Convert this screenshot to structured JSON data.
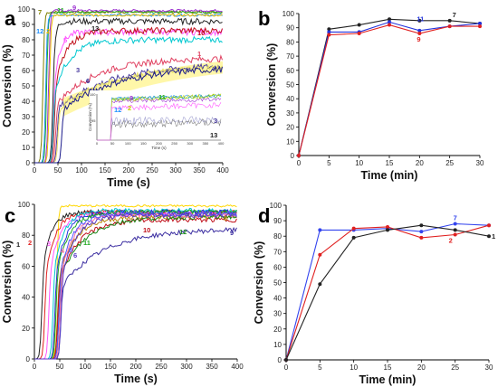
{
  "chart_data": [
    {
      "panel": "a",
      "type": "line",
      "xlabel": "Time (s)",
      "ylabel": "Conversion (%)",
      "xlim": [
        0,
        400
      ],
      "ylim": [
        0,
        100
      ],
      "xticks": [
        "0",
        "50",
        "100",
        "150",
        "200",
        "250",
        "300",
        "350",
        "400"
      ],
      "yticks": [
        "0",
        "10",
        "20",
        "30",
        "40",
        "50",
        "60",
        "70",
        "80",
        "90",
        "100"
      ],
      "grid": false,
      "series": [
        {
          "name": "7",
          "color": "#808000",
          "plateau": 98,
          "rise": 18,
          "k": 0.5
        },
        {
          "name": "11",
          "color": "#22a822",
          "plateau": 98,
          "rise": 26,
          "k": 0.45
        },
        {
          "name": "9",
          "color": "#9b30d0",
          "plateau": 99,
          "rise": 30,
          "k": 0.4
        },
        {
          "name": "12",
          "color": "#1e90ff",
          "plateau": 96,
          "rise": 24,
          "k": 0.45
        },
        {
          "name": "2",
          "color": "#f0c000",
          "plateau": 96,
          "rise": 32,
          "k": 0.4
        },
        {
          "name": "13",
          "color": "#222222",
          "plateau": 92,
          "rise": 38,
          "k": 0.2
        },
        {
          "name": "5",
          "color": "#ff55ff",
          "plateau": 85,
          "rise": 40,
          "k": 0.08
        },
        {
          "name": "10",
          "color": "#c0101a",
          "plateau": 86,
          "rise": 42,
          "k": 0.04
        },
        {
          "name": "",
          "color": "#00c8d0",
          "plateau": 80,
          "rise": 40,
          "k": 0.03
        },
        {
          "name": "1",
          "color": "#e04060",
          "plateau": 68,
          "rise": 45,
          "k": 0.012
        },
        {
          "name": "3",
          "color": "#4a3ca0",
          "plateau": 64,
          "rise": 48,
          "k": 0.009
        },
        {
          "name": "",
          "color": "#e6e060",
          "plateau": 63,
          "rise": 50,
          "k": 0.009
        },
        {
          "name": "6",
          "color": "#1c1c8c",
          "plateau": 62,
          "rise": 58,
          "k": 0.009
        }
      ],
      "inset": {
        "xlabel": "Time (s)",
        "ylabel": "Conversion (%)",
        "xticks": [
          "0",
          "50",
          "100",
          "150",
          "200",
          "250",
          "300",
          "350",
          "400"
        ],
        "yticks": [
          "95",
          "100"
        ],
        "series_labels": [
          "9",
          "11",
          "12",
          "2",
          "3",
          "13"
        ]
      }
    },
    {
      "panel": "b",
      "type": "line",
      "xlabel": "Time (min)",
      "ylabel": "Conversion (%)",
      "xlim": [
        0,
        30
      ],
      "ylim": [
        0,
        100
      ],
      "xticks": [
        "0",
        "5",
        "10",
        "15",
        "20",
        "25",
        "30"
      ],
      "yticks": [
        "0",
        "10",
        "20",
        "30",
        "40",
        "50",
        "60",
        "70",
        "80",
        "90",
        "100"
      ],
      "x": [
        0,
        5,
        10,
        15,
        20,
        25,
        30
      ],
      "series": [
        {
          "name": "7",
          "color": "#222222",
          "values": [
            0,
            89,
            92,
            96,
            95,
            95,
            93
          ]
        },
        {
          "name": "11",
          "color": "#2233dd",
          "values": [
            0,
            87,
            87,
            94,
            88,
            91,
            93
          ]
        },
        {
          "name": "9",
          "color": "#e02020",
          "values": [
            0,
            85,
            86,
            92,
            86,
            91,
            91
          ]
        }
      ]
    },
    {
      "panel": "c",
      "type": "line",
      "xlabel": "Time (s)",
      "ylabel": "Conversion (%)",
      "xlim": [
        0,
        400
      ],
      "ylim": [
        0,
        100
      ],
      "xticks": [
        "0",
        "50",
        "100",
        "150",
        "200",
        "250",
        "300",
        "350",
        "400"
      ],
      "yticks": [
        "0",
        "20",
        "40",
        "60",
        "80",
        "100"
      ],
      "series": [
        {
          "name": "",
          "color": "#ffd700",
          "plateau": 99,
          "rise": 44,
          "k": 0.4
        },
        {
          "name": "1",
          "color": "#222222",
          "plateau": 95,
          "rise": 14,
          "k": 0.06
        },
        {
          "name": "2",
          "color": "#e02020",
          "plateau": 95,
          "rise": 20,
          "k": 0.05
        },
        {
          "name": "3",
          "color": "#ff55ff",
          "plateau": 94,
          "rise": 28,
          "k": 0.05
        },
        {
          "name": "",
          "color": "#00c8d0",
          "plateau": 96,
          "rise": 36,
          "k": 0.05
        },
        {
          "name": "",
          "color": "#2233dd",
          "plateau": 95,
          "rise": 40,
          "k": 0.045
        },
        {
          "name": "11",
          "color": "#22a822",
          "plateau": 95,
          "rise": 42,
          "k": 0.04
        },
        {
          "name": "8",
          "color": "#b8860b",
          "plateau": 92,
          "rise": 45,
          "k": 0.03
        },
        {
          "name": "10",
          "color": "#c0101a",
          "plateau": 90,
          "rise": 46,
          "k": 0.025
        },
        {
          "name": "12",
          "color": "#1a8a1a",
          "plateau": 92,
          "rise": 48,
          "k": 0.02
        },
        {
          "name": "9",
          "color": "#3a2ca0",
          "plateau": 84,
          "rise": 52,
          "k": 0.012
        },
        {
          "name": "4",
          "color": "#ff77aa",
          "plateau": 93,
          "rise": 50,
          "k": 0.04
        },
        {
          "name": "5",
          "color": "#5555ff",
          "plateau": 94,
          "rise": 48,
          "k": 0.04
        },
        {
          "name": "6",
          "color": "#5a3ac8",
          "plateau": 93,
          "rise": 52,
          "k": 0.035
        }
      ]
    },
    {
      "panel": "d",
      "type": "line",
      "xlabel": "Time (min)",
      "ylabel": "Conversion (%)",
      "xlim": [
        0,
        30
      ],
      "ylim": [
        0,
        100
      ],
      "xticks": [
        "0",
        "5",
        "10",
        "15",
        "20",
        "25",
        "30"
      ],
      "yticks": [
        "0",
        "10",
        "20",
        "30",
        "40",
        "50",
        "60",
        "70",
        "80",
        "90",
        "100"
      ],
      "x": [
        0,
        5,
        10,
        15,
        20,
        25,
        30
      ],
      "series": [
        {
          "name": "7",
          "color": "#3344ee",
          "values": [
            0,
            84,
            84,
            85,
            83,
            88,
            87
          ]
        },
        {
          "name": "2",
          "color": "#e02020",
          "values": [
            0,
            68,
            85,
            86,
            79,
            81,
            87
          ]
        },
        {
          "name": "1",
          "color": "#222222",
          "values": [
            0,
            49,
            79,
            84,
            87,
            84,
            80
          ]
        }
      ]
    }
  ]
}
